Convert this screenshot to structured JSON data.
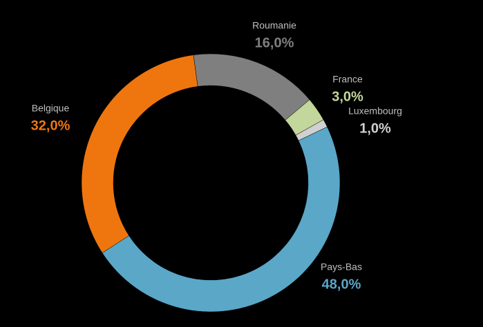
{
  "chart_data": {
    "type": "donut",
    "categories": [
      "Roumanie",
      "France",
      "Luxembourg",
      "Pays-Bas",
      "Belgique"
    ],
    "values": [
      16,
      3,
      1,
      48,
      32
    ],
    "value_labels": [
      "16,0%",
      "3,0%",
      "1,0%",
      "48,0%",
      "32,0%"
    ],
    "colors": [
      "#7f7f7f",
      "#c3d69b",
      "#d0d0d0",
      "#5aa7c8",
      "#ef760f"
    ]
  }
}
